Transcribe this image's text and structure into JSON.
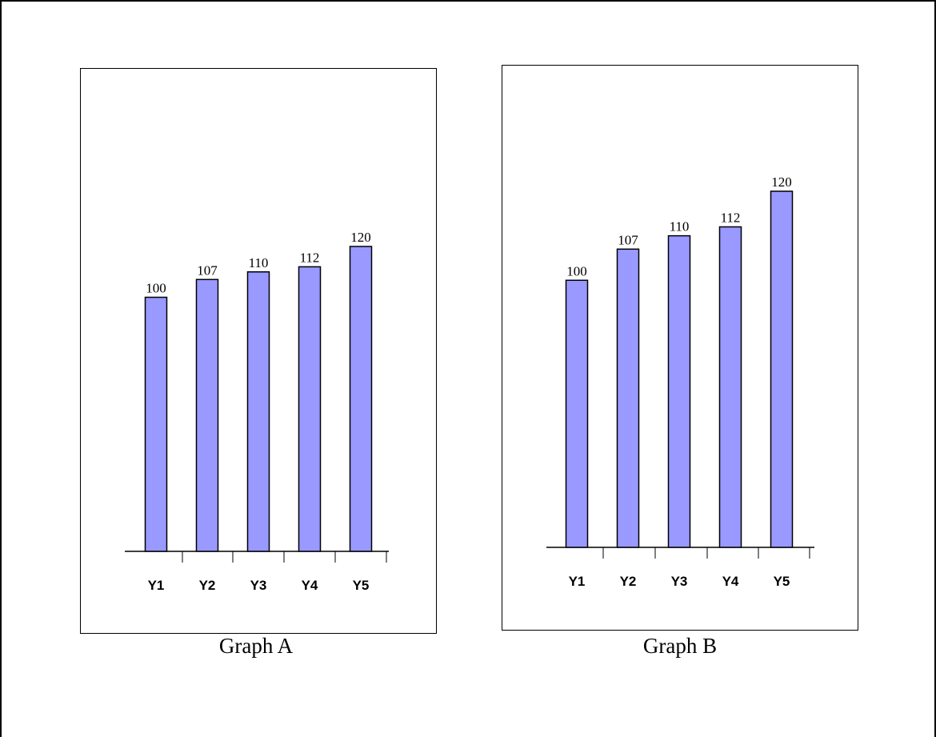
{
  "chart_data": [
    {
      "type": "bar",
      "title": "Graph A",
      "categories": [
        "Y1",
        "Y2",
        "Y3",
        "Y4",
        "Y5"
      ],
      "values": [
        100,
        107,
        110,
        112,
        120
      ],
      "data_labels": [
        "100",
        "107",
        "110",
        "112",
        "120"
      ],
      "xlabel": "",
      "ylabel": "",
      "ylim": [
        0,
        120
      ],
      "grid": false,
      "colors": {
        "bar_fill": "#9999ff",
        "bar_stroke": "#000000"
      }
    },
    {
      "type": "bar",
      "title": "Graph B",
      "categories": [
        "Y1",
        "Y2",
        "Y3",
        "Y4",
        "Y5"
      ],
      "values": [
        100,
        107,
        110,
        112,
        120
      ],
      "data_labels": [
        "100",
        "107",
        "110",
        "112",
        "120"
      ],
      "xlabel": "",
      "ylabel": "",
      "ylim": [
        40,
        120
      ],
      "grid": false,
      "colors": {
        "bar_fill": "#9999ff",
        "bar_stroke": "#000000"
      }
    }
  ]
}
